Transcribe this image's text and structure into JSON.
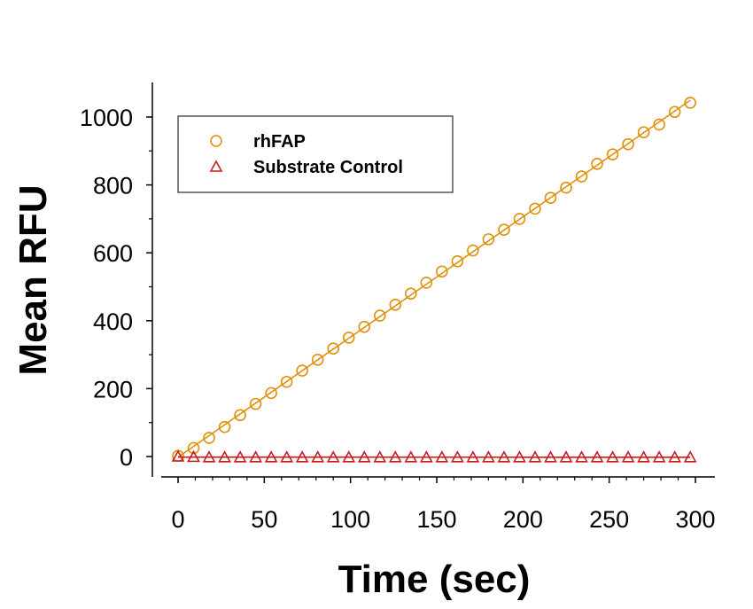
{
  "chart_data": {
    "type": "scatter",
    "title": "",
    "xlabel": "Time (sec)",
    "ylabel": "Mean RFU",
    "xlim": [
      -10,
      310
    ],
    "ylim": [
      -60,
      1110
    ],
    "xticks": [
      0,
      50,
      100,
      150,
      200,
      250,
      300
    ],
    "yticks": [
      0,
      200,
      400,
      600,
      800,
      1000
    ],
    "grid": false,
    "legend": {
      "position": "top-left",
      "box": true
    },
    "x": [
      0,
      9,
      18,
      27,
      36,
      45,
      54,
      63,
      72,
      81,
      90,
      99,
      108,
      117,
      126,
      135,
      144,
      153,
      162,
      171,
      180,
      189,
      198,
      207,
      216,
      225,
      234,
      243,
      252,
      261,
      270,
      279,
      288,
      297
    ],
    "series": [
      {
        "name": "rhFAP",
        "marker": "circle",
        "color": "#e0900a",
        "fit_line": true,
        "values": [
          2,
          25,
          55,
          87,
          122,
          155,
          187,
          220,
          253,
          285,
          318,
          350,
          382,
          415,
          447,
          480,
          512,
          545,
          575,
          607,
          640,
          668,
          700,
          730,
          762,
          792,
          825,
          862,
          890,
          920,
          955,
          978,
          1015,
          1042
        ]
      },
      {
        "name": "Substrate Control",
        "marker": "triangle",
        "color": "#cc1a1a",
        "fit_line": true,
        "values": [
          0,
          -1,
          -2,
          -2,
          -2,
          -2,
          -2,
          -2,
          -2,
          -2,
          -2,
          -2,
          -2,
          -2,
          -2,
          -2,
          -2,
          -2,
          -2,
          -2,
          -2,
          -2,
          -2,
          -2,
          -2,
          -2,
          -2,
          -2,
          -2,
          -2,
          -2,
          -2,
          -2,
          -2
        ]
      }
    ]
  }
}
